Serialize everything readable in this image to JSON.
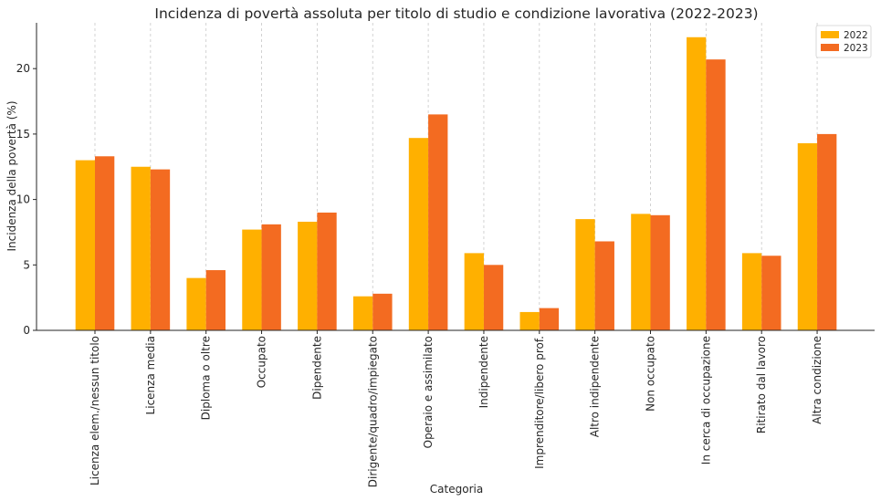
{
  "chart_data": {
    "type": "bar",
    "title": "Incidenza di povertà assoluta per titolo di studio e condizione lavorativa (2022-2023)",
    "xlabel": "Categoria",
    "ylabel": "Incidenza della povertà (%)",
    "ylim": [
      0,
      23.5
    ],
    "yticks": [
      0,
      5,
      10,
      15,
      20
    ],
    "grid": "vertical dashed",
    "legend_position": "top-right",
    "categories": [
      "Licenza elem./nessun titolo",
      "Licenza media",
      "Diploma o oltre",
      "Occupato",
      "Dipendente",
      "Dirigente/quadro/impiegato",
      "Operaio e assimilato",
      "Indipendente",
      "Imprenditore/libero prof.",
      "Altro indipendente",
      "Non occupato",
      "In cerca di occupazione",
      "Ritirato dal lavoro",
      "Altra condizione"
    ],
    "series": [
      {
        "name": "2022",
        "color": "#FFB000",
        "values": [
          13.0,
          12.5,
          4.0,
          7.7,
          8.3,
          2.6,
          14.7,
          5.9,
          1.4,
          8.5,
          8.9,
          22.4,
          5.9,
          14.3
        ]
      },
      {
        "name": "2023",
        "color": "#F36B21",
        "values": [
          13.3,
          12.3,
          4.6,
          8.1,
          9.0,
          2.8,
          16.5,
          5.0,
          1.7,
          6.8,
          8.8,
          20.7,
          5.7,
          15.0
        ]
      }
    ]
  }
}
